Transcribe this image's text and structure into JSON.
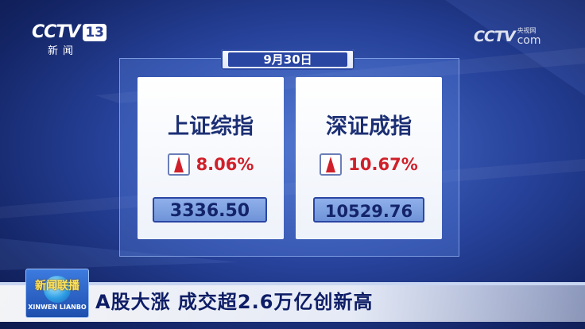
{
  "logos": {
    "channel_brand": "CCTV",
    "channel_number": "13",
    "channel_sub": "新闻",
    "watermark_brand": "CCTV",
    "watermark_cn": "央视网",
    "watermark_com": "com"
  },
  "board": {
    "date": "9月30日",
    "indices": [
      {
        "name": "上证综指",
        "change": "8.06%",
        "value": "3336.50",
        "direction": "up"
      },
      {
        "name": "深证成指",
        "change": "10.67%",
        "value": "10529.76",
        "direction": "up"
      }
    ]
  },
  "program": {
    "name": "新闻联播",
    "pinyin": "XINWEN LIANBO"
  },
  "headline": "A股大涨 成交超2.6万亿创新高",
  "colors": {
    "up_red": "#d0202a",
    "navy": "#1c2f74",
    "background_blue": "#27439c"
  }
}
